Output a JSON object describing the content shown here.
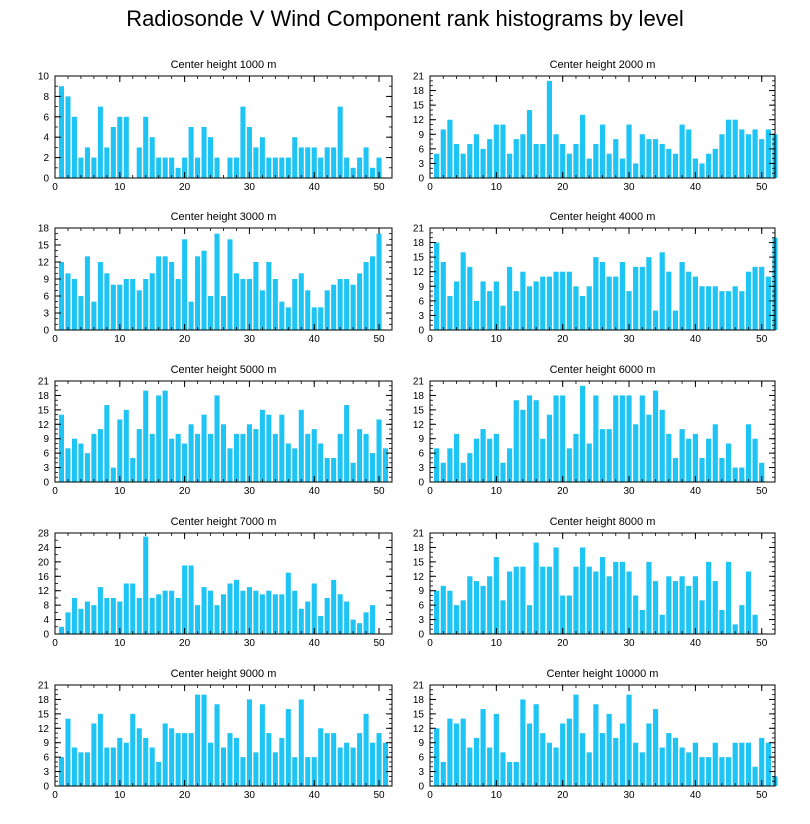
{
  "title": "Radiosonde V Wind Component rank histograms by level",
  "bar_color": "#1ec4f4",
  "chart_data": [
    {
      "type": "bar",
      "title": "Center height 1000 m",
      "xlim": [
        0,
        52
      ],
      "ylim": [
        0,
        10
      ],
      "yticks": [
        0,
        2,
        4,
        6,
        8,
        10
      ],
      "xticks": [
        0,
        10,
        20,
        30,
        40,
        50
      ],
      "values": [
        9,
        8,
        6,
        2,
        3,
        2,
        7,
        3,
        5,
        6,
        6,
        0,
        3,
        6,
        4,
        2,
        2,
        2,
        1,
        2,
        5,
        2,
        5,
        4,
        2,
        0,
        2,
        2,
        7,
        5,
        3,
        4,
        2,
        2,
        2,
        2,
        4,
        3,
        3,
        3,
        2,
        3,
        3,
        7,
        2,
        1,
        2,
        3,
        1,
        2
      ]
    },
    {
      "type": "bar",
      "title": "Center height 2000 m",
      "xlim": [
        0,
        52
      ],
      "ylim": [
        0,
        21
      ],
      "yticks": [
        0,
        3,
        6,
        9,
        12,
        15,
        18,
        21
      ],
      "xticks": [
        0,
        10,
        20,
        30,
        40,
        50
      ],
      "values": [
        5,
        10,
        12,
        7,
        5,
        7,
        9,
        6,
        8,
        11,
        11,
        5,
        8,
        9,
        14,
        7,
        7,
        20,
        9,
        7,
        5,
        7,
        13,
        4,
        7,
        11,
        5,
        8,
        4,
        11,
        3,
        9,
        8,
        8,
        7,
        6,
        5,
        11,
        10,
        4,
        3,
        5,
        6,
        9,
        12,
        12,
        10,
        9,
        10,
        8,
        10,
        9
      ]
    },
    {
      "type": "bar",
      "title": "Center height 3000 m",
      "xlim": [
        0,
        52
      ],
      "ylim": [
        0,
        18
      ],
      "yticks": [
        0,
        3,
        6,
        9,
        12,
        15,
        18
      ],
      "xticks": [
        0,
        10,
        20,
        30,
        40,
        50
      ],
      "values": [
        12,
        10,
        9,
        6,
        13,
        5,
        12,
        10,
        8,
        8,
        9,
        9,
        7,
        9,
        10,
        13,
        13,
        12,
        9,
        16,
        5,
        13,
        14,
        6,
        17,
        6,
        16,
        10,
        9,
        9,
        12,
        7,
        12,
        9,
        5,
        4,
        9,
        10,
        7,
        4,
        4,
        7,
        8,
        9,
        9,
        8,
        10,
        12,
        13,
        17
      ]
    },
    {
      "type": "bar",
      "title": "Center height 4000 m",
      "xlim": [
        0,
        52
      ],
      "ylim": [
        0,
        21
      ],
      "yticks": [
        0,
        3,
        6,
        9,
        12,
        15,
        18,
        21
      ],
      "xticks": [
        0,
        10,
        20,
        30,
        40,
        50
      ],
      "values": [
        18,
        14,
        7,
        10,
        16,
        13,
        6,
        10,
        8,
        10,
        5,
        13,
        8,
        12,
        9,
        10,
        11,
        11,
        12,
        12,
        12,
        9,
        7,
        9,
        15,
        14,
        11,
        11,
        14,
        8,
        13,
        13,
        15,
        4,
        16,
        12,
        4,
        14,
        12,
        11,
        9,
        9,
        9,
        8,
        8,
        9,
        8,
        12,
        13,
        13,
        11,
        19
      ]
    },
    {
      "type": "bar",
      "title": "Center height 5000 m",
      "xlim": [
        0,
        52
      ],
      "ylim": [
        0,
        21
      ],
      "yticks": [
        0,
        3,
        6,
        9,
        12,
        15,
        18,
        21
      ],
      "xticks": [
        0,
        10,
        20,
        30,
        40,
        50
      ],
      "values": [
        14,
        7,
        9,
        8,
        6,
        10,
        11,
        16,
        3,
        13,
        15,
        5,
        11,
        19,
        10,
        18,
        19,
        9,
        10,
        8,
        12,
        10,
        14,
        10,
        18,
        12,
        7,
        10,
        10,
        12,
        11,
        15,
        14,
        10,
        14,
        8,
        7,
        15,
        10,
        11,
        8,
        5,
        5,
        10,
        16,
        4,
        11,
        10,
        6,
        13,
        7
      ]
    },
    {
      "type": "bar",
      "title": "Center height 6000 m",
      "xlim": [
        0,
        52
      ],
      "ylim": [
        0,
        21
      ],
      "yticks": [
        0,
        3,
        6,
        9,
        12,
        15,
        18,
        21
      ],
      "xticks": [
        0,
        10,
        20,
        30,
        40,
        50
      ],
      "values": [
        7,
        4,
        7,
        10,
        4,
        6,
        9,
        11,
        9,
        10,
        4,
        7,
        17,
        15,
        18,
        17,
        9,
        14,
        18,
        18,
        7,
        10,
        20,
        8,
        18,
        11,
        11,
        18,
        18,
        18,
        12,
        18,
        14,
        19,
        15,
        10,
        5,
        11,
        9,
        10,
        5,
        9,
        12,
        5,
        8,
        3,
        3,
        12,
        9,
        4
      ]
    },
    {
      "type": "bar",
      "title": "Center height 7000 m",
      "xlim": [
        0,
        52
      ],
      "ylim": [
        0,
        28
      ],
      "yticks": [
        0,
        4,
        8,
        12,
        16,
        20,
        24,
        28
      ],
      "xticks": [
        0,
        10,
        20,
        30,
        40,
        50
      ],
      "values": [
        2,
        6,
        10,
        7,
        9,
        8,
        13,
        10,
        10,
        9,
        14,
        14,
        10,
        27,
        10,
        11,
        12,
        12,
        10,
        19,
        19,
        8,
        13,
        12,
        8,
        11,
        14,
        15,
        12,
        13,
        12,
        11,
        12,
        11,
        11,
        17,
        12,
        7,
        9,
        14,
        5,
        10,
        15,
        11,
        9,
        4,
        3,
        6,
        8
      ]
    },
    {
      "type": "bar",
      "title": "Center height 8000 m",
      "xlim": [
        0,
        52
      ],
      "ylim": [
        0,
        21
      ],
      "yticks": [
        0,
        3,
        6,
        9,
        12,
        15,
        18,
        21
      ],
      "xticks": [
        0,
        10,
        20,
        30,
        40,
        50
      ],
      "values": [
        9,
        10,
        9,
        6,
        7,
        12,
        11,
        10,
        12,
        16,
        7,
        13,
        14,
        14,
        6,
        19,
        14,
        14,
        18,
        8,
        8,
        14,
        18,
        14,
        13,
        16,
        12,
        15,
        15,
        13,
        8,
        5,
        15,
        11,
        4,
        12,
        11,
        12,
        10,
        12,
        7,
        15,
        11,
        5,
        15,
        2,
        6,
        13,
        4
      ]
    },
    {
      "type": "bar",
      "title": "Center height 9000 m",
      "xlim": [
        0,
        52
      ],
      "ylim": [
        0,
        21
      ],
      "yticks": [
        0,
        3,
        6,
        9,
        12,
        15,
        18,
        21
      ],
      "xticks": [
        0,
        10,
        20,
        30,
        40,
        50
      ],
      "values": [
        6,
        14,
        8,
        7,
        7,
        13,
        15,
        8,
        8,
        10,
        9,
        15,
        12,
        10,
        8,
        5,
        13,
        12,
        11,
        11,
        11,
        19,
        19,
        9,
        17,
        8,
        11,
        10,
        6,
        18,
        7,
        17,
        11,
        7,
        10,
        16,
        6,
        18,
        6,
        6,
        12,
        11,
        11,
        8,
        9,
        8,
        11,
        15,
        9,
        11,
        9
      ]
    },
    {
      "type": "bar",
      "title": "Center height 10000 m",
      "xlim": [
        0,
        52
      ],
      "ylim": [
        0,
        21
      ],
      "yticks": [
        0,
        3,
        6,
        9,
        12,
        15,
        18,
        21
      ],
      "xticks": [
        0,
        10,
        20,
        30,
        40,
        50
      ],
      "values": [
        12,
        5,
        14,
        13,
        14,
        8,
        10,
        16,
        8,
        15,
        7,
        5,
        5,
        18,
        13,
        17,
        11,
        9,
        8,
        13,
        14,
        19,
        11,
        7,
        17,
        11,
        15,
        10,
        13,
        19,
        9,
        7,
        13,
        16,
        8,
        11,
        10,
        8,
        7,
        9,
        6,
        6,
        9,
        6,
        6,
        9,
        9,
        9,
        4,
        10,
        9,
        2
      ]
    }
  ]
}
